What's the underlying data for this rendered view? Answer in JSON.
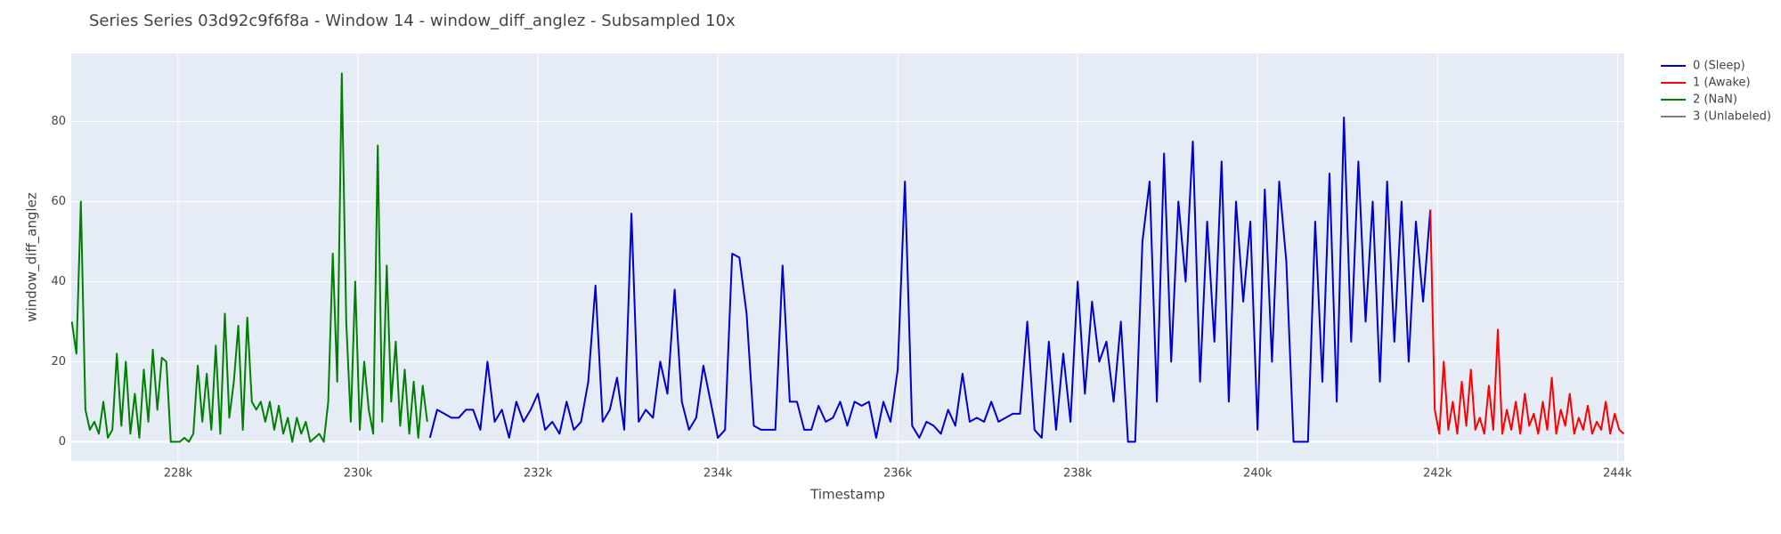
{
  "chart_data": {
    "type": "line",
    "title": "Series Series 03d92c9f6f8a - Window 14 - window_diff_anglez - Subsampled 10x",
    "x_label": "Timestamp",
    "y_label": "window_diff_anglez",
    "xlim": [
      226813,
      244076
    ],
    "ylim": [
      -4.8,
      97
    ],
    "xticks": [
      {
        "value": 228000,
        "label": "228k"
      },
      {
        "value": 230000,
        "label": "230k"
      },
      {
        "value": 232000,
        "label": "232k"
      },
      {
        "value": 234000,
        "label": "234k"
      },
      {
        "value": 236000,
        "label": "236k"
      },
      {
        "value": 238000,
        "label": "238k"
      },
      {
        "value": 240000,
        "label": "240k"
      },
      {
        "value": 242000,
        "label": "242k"
      },
      {
        "value": 244000,
        "label": "244k"
      }
    ],
    "yticks": [
      0,
      20,
      40,
      60,
      80
    ],
    "grid": true,
    "legend": "right",
    "series": [
      {
        "name": "0 (Sleep)",
        "color": "#0000cc",
        "x": [
          230800,
          230880,
          230960,
          231040,
          231120,
          231200,
          231280,
          231360,
          231440,
          231520,
          231600,
          231680,
          231760,
          231840,
          231920,
          232000,
          232080,
          232160,
          232240,
          232320,
          232400,
          232480,
          232560,
          232640,
          232720,
          232800,
          232880,
          232960,
          233040,
          233120,
          233200,
          233280,
          233360,
          233440,
          233520,
          233600,
          233680,
          233760,
          233840,
          233920,
          234000,
          234080,
          234160,
          234240,
          234320,
          234400,
          234480,
          234560,
          234640,
          234720,
          234800,
          234880,
          234960,
          235040,
          235120,
          235200,
          235280,
          235360,
          235440,
          235520,
          235600,
          235680,
          235760,
          235840,
          235920,
          236000,
          236080,
          236160,
          236240,
          236320,
          236400,
          236480,
          236560,
          236640,
          236720,
          236800,
          236880,
          236960,
          237040,
          237120,
          237200,
          237280,
          237360,
          237440,
          237520,
          237600,
          237680,
          237760,
          237840,
          237920,
          238000,
          238080,
          238160,
          238240,
          238320,
          238400,
          238480,
          238560,
          238640,
          238720,
          238800,
          238880,
          238960,
          239040,
          239120,
          239200,
          239280,
          239360,
          239440,
          239520,
          239600,
          239680,
          239760,
          239840,
          239920,
          240000,
          240080,
          240160,
          240240,
          240320,
          240400,
          240480,
          240560,
          240640,
          240720,
          240800,
          240880,
          240960,
          241040,
          241120,
          241200,
          241280,
          241360,
          241440,
          241520,
          241600,
          241680,
          241760,
          241840,
          241920
        ],
        "values": [
          1,
          8,
          7,
          6,
          6,
          8,
          8,
          3,
          20,
          5,
          8,
          1,
          10,
          5,
          8,
          12,
          3,
          5,
          2,
          10,
          3,
          5,
          15,
          39,
          5,
          8,
          16,
          3,
          57,
          5,
          8,
          6,
          20,
          12,
          38,
          10,
          3,
          6,
          19,
          10,
          1,
          3,
          47,
          46,
          32,
          4,
          3,
          3,
          3,
          44,
          10,
          10,
          3,
          3,
          9,
          5,
          6,
          10,
          4,
          10,
          9,
          10,
          1,
          10,
          5,
          18,
          65,
          4,
          1,
          5,
          4,
          2,
          8,
          4,
          17,
          5,
          6,
          5,
          10,
          5,
          6,
          7,
          7,
          30,
          3,
          1,
          25,
          3,
          22,
          5,
          40,
          12,
          35,
          20,
          25,
          10,
          30,
          0,
          0,
          50,
          65,
          10,
          72,
          20,
          60,
          40,
          75,
          15,
          55,
          25,
          70,
          10,
          60,
          35,
          55,
          3,
          63,
          20,
          65,
          45,
          0,
          0,
          0,
          55,
          15,
          67,
          10,
          81,
          25,
          70,
          30,
          60,
          15,
          65,
          25,
          60,
          20,
          55,
          35,
          58
        ]
      },
      {
        "name": "1 (Awake)",
        "color": "#ff0000",
        "x": [
          241920,
          241970,
          242020,
          242070,
          242120,
          242170,
          242220,
          242270,
          242320,
          242370,
          242420,
          242470,
          242520,
          242570,
          242620,
          242670,
          242720,
          242770,
          242820,
          242870,
          242920,
          242970,
          243020,
          243070,
          243120,
          243170,
          243220,
          243270,
          243320,
          243370,
          243420,
          243470,
          243520,
          243570,
          243620,
          243670,
          243720,
          243770,
          243820,
          243870,
          243920,
          243970,
          244020,
          244070
        ],
        "values": [
          58,
          8,
          2,
          20,
          3,
          10,
          2,
          15,
          4,
          18,
          3,
          6,
          2,
          14,
          3,
          28,
          2,
          8,
          3,
          10,
          2,
          12,
          4,
          7,
          2,
          10,
          3,
          16,
          2,
          8,
          4,
          12,
          2,
          6,
          3,
          9,
          2,
          5,
          3,
          10,
          2,
          7,
          3,
          2
        ]
      },
      {
        "name": "2 (NaN)",
        "color": "#008000",
        "x": [
          226820,
          226870,
          226920,
          226970,
          227020,
          227070,
          227120,
          227170,
          227220,
          227270,
          227320,
          227370,
          227420,
          227470,
          227520,
          227570,
          227620,
          227670,
          227720,
          227770,
          227820,
          227870,
          227920,
          227970,
          228020,
          228070,
          228120,
          228170,
          228220,
          228270,
          228320,
          228370,
          228420,
          228470,
          228520,
          228570,
          228620,
          228670,
          228720,
          228770,
          228820,
          228870,
          228920,
          228970,
          229020,
          229070,
          229120,
          229170,
          229220,
          229270,
          229320,
          229370,
          229420,
          229470,
          229520,
          229570,
          229620,
          229670,
          229720,
          229770,
          229820,
          229870,
          229920,
          229970,
          230020,
          230070,
          230120,
          230170,
          230220,
          230270,
          230320,
          230370,
          230420,
          230470,
          230520,
          230570,
          230620,
          230670,
          230720,
          230770
        ],
        "values": [
          30,
          22,
          60,
          8,
          3,
          5,
          2,
          10,
          1,
          3,
          22,
          4,
          20,
          2,
          12,
          1,
          18,
          5,
          23,
          8,
          21,
          20,
          0,
          0,
          0,
          1,
          0,
          2,
          19,
          5,
          17,
          3,
          24,
          2,
          32,
          6,
          15,
          29,
          3,
          31,
          10,
          8,
          10,
          5,
          10,
          3,
          9,
          2,
          6,
          0,
          6,
          2,
          5,
          0,
          1,
          2,
          0,
          10,
          47,
          15,
          92,
          30,
          5,
          40,
          3,
          20,
          8,
          2,
          74,
          5,
          44,
          10,
          25,
          4,
          18,
          2,
          15,
          1,
          14,
          5
        ]
      },
      {
        "name": "3 (Unlabeled)",
        "color": "#808080",
        "x": [],
        "values": []
      }
    ]
  }
}
